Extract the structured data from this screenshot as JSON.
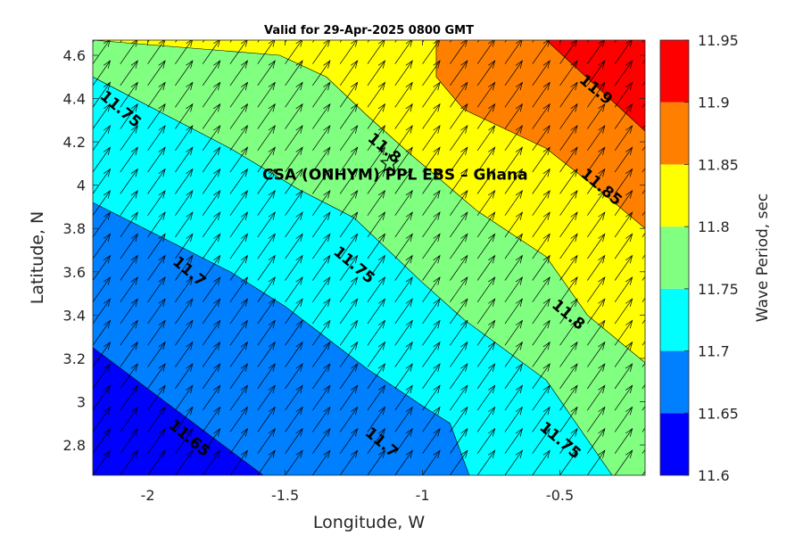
{
  "chart_data": {
    "type": "heatmap",
    "subtype": "filled contour with vector arrows",
    "title": "Valid for 29-Apr-2025 0800 GMT",
    "xlabel": "Longitude, W",
    "ylabel": "Latitude, N",
    "xlim": [
      -2.2,
      -0.19
    ],
    "ylim": [
      2.66,
      4.67
    ],
    "x_ticks": [
      -2,
      -1.5,
      -1,
      -0.5
    ],
    "x_tick_labels": [
      "-2",
      "-1.5",
      "-1",
      "-0.5"
    ],
    "y_ticks": [
      2.8,
      3,
      3.2,
      3.4,
      3.6,
      3.8,
      4,
      4.2,
      4.4,
      4.6
    ],
    "y_tick_labels": [
      "2.8",
      "3",
      "3.2",
      "3.4",
      "3.6",
      "3.8",
      "4",
      "4.2",
      "4.4",
      "4.6"
    ],
    "colorbar": {
      "label": "Wave Period, sec",
      "levels": [
        11.6,
        11.65,
        11.7,
        11.75,
        11.8,
        11.85,
        11.9,
        11.95
      ],
      "level_labels": [
        "11.6",
        "11.65",
        "11.7",
        "11.75",
        "11.8",
        "11.85",
        "11.9",
        "11.95"
      ],
      "colors": [
        "#0000ff",
        "#0080ff",
        "#00ffff",
        "#80ff80",
        "#ffff00",
        "#ff8000",
        "#ff0000"
      ]
    },
    "contours": [
      {
        "level": 11.65,
        "line": [
          [
            -2.2,
            3.25
          ],
          [
            -1.58,
            2.66
          ]
        ]
      },
      {
        "level": 11.7,
        "line": [
          [
            -2.2,
            3.92
          ],
          [
            -1.7,
            3.6
          ],
          [
            -1.5,
            3.44
          ],
          [
            -1.2,
            3.15
          ],
          [
            -1.0,
            2.98
          ],
          [
            -0.9,
            2.9
          ],
          [
            -0.83,
            2.66
          ]
        ]
      },
      {
        "level": 11.75,
        "line": [
          [
            -2.2,
            4.5
          ],
          [
            -1.7,
            4.17
          ],
          [
            -1.45,
            3.98
          ],
          [
            -1.25,
            3.85
          ],
          [
            -1.0,
            3.55
          ],
          [
            -0.85,
            3.38
          ],
          [
            -0.55,
            3.1
          ],
          [
            -0.31,
            2.66
          ]
        ]
      },
      {
        "level": 11.8,
        "line": [
          [
            -2.2,
            4.67
          ],
          [
            -1.52,
            4.6
          ],
          [
            -1.35,
            4.5
          ],
          [
            -1.2,
            4.32
          ],
          [
            -1.05,
            4.15
          ],
          [
            -0.8,
            3.88
          ],
          [
            -0.55,
            3.67
          ],
          [
            -0.4,
            3.4
          ],
          [
            -0.19,
            3.18
          ]
        ]
      },
      {
        "level": 11.85,
        "line": [
          [
            -0.95,
            4.67
          ],
          [
            -0.95,
            4.5
          ],
          [
            -0.85,
            4.35
          ],
          [
            -0.55,
            4.17
          ],
          [
            -0.35,
            3.97
          ],
          [
            -0.19,
            3.8
          ]
        ]
      },
      {
        "level": 11.9,
        "line": [
          [
            -0.55,
            4.67
          ],
          [
            -0.19,
            4.25
          ]
        ]
      }
    ],
    "contour_labels": [
      {
        "text": "11.65",
        "x": -1.85,
        "y": 2.83,
        "angle": 40
      },
      {
        "text": "11.7",
        "x": -1.85,
        "y": 3.6,
        "angle": 40
      },
      {
        "text": "11.7",
        "x": -1.15,
        "y": 2.81,
        "angle": 40
      },
      {
        "text": "11.75",
        "x": -2.1,
        "y": 4.35,
        "angle": 40
      },
      {
        "text": "11.75",
        "x": -1.25,
        "y": 3.63,
        "angle": 40
      },
      {
        "text": "11.75",
        "x": -0.5,
        "y": 2.82,
        "angle": 40
      },
      {
        "text": "11.8",
        "x": -1.14,
        "y": 4.17,
        "angle": 40
      },
      {
        "text": "11.8",
        "x": -0.47,
        "y": 3.4,
        "angle": 40
      },
      {
        "text": "11.85",
        "x": -0.35,
        "y": 3.99,
        "angle": 40
      },
      {
        "text": "11.9",
        "x": -0.37,
        "y": 4.44,
        "angle": 40
      }
    ],
    "vectors": {
      "x_spacing": 0.1,
      "y_spacing": 0.1,
      "direction_deg_from_east": 55,
      "note_on_magnitude": "uniform"
    },
    "site": {
      "label": "CSA (ONHYM) PPL EBS  – Ghana",
      "marker": "star",
      "x": -1.12,
      "y": 4.1
    }
  }
}
